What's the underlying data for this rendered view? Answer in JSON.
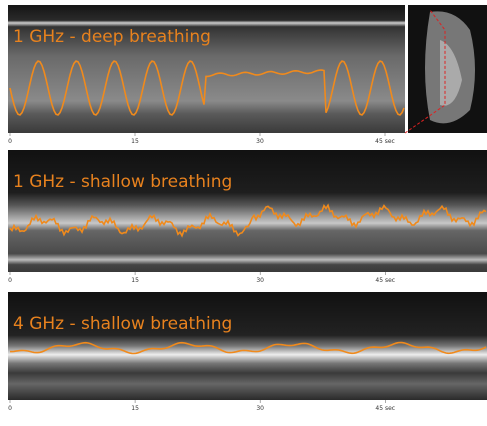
{
  "chart_data": [
    {
      "type": "image",
      "title": "1 GHz - deep breathing",
      "xlim": [
        0,
        47.4
      ],
      "xticks": [
        0,
        15,
        30,
        {
          "value": 45,
          "label": "45 sec"
        }
      ]
    },
    {
      "type": "image",
      "title": "1 GHz - shallow breathing",
      "xlim": [
        0,
        57.2
      ],
      "xticks": [
        0,
        15,
        30,
        {
          "value": 45,
          "label": "45 sec"
        }
      ]
    },
    {
      "type": "image",
      "title": "4 GHz - shallow breathing",
      "xlim": [
        0,
        57.2
      ],
      "xticks": [
        0,
        15,
        30,
        {
          "value": 45,
          "label": "45 sec"
        }
      ]
    }
  ]
}
